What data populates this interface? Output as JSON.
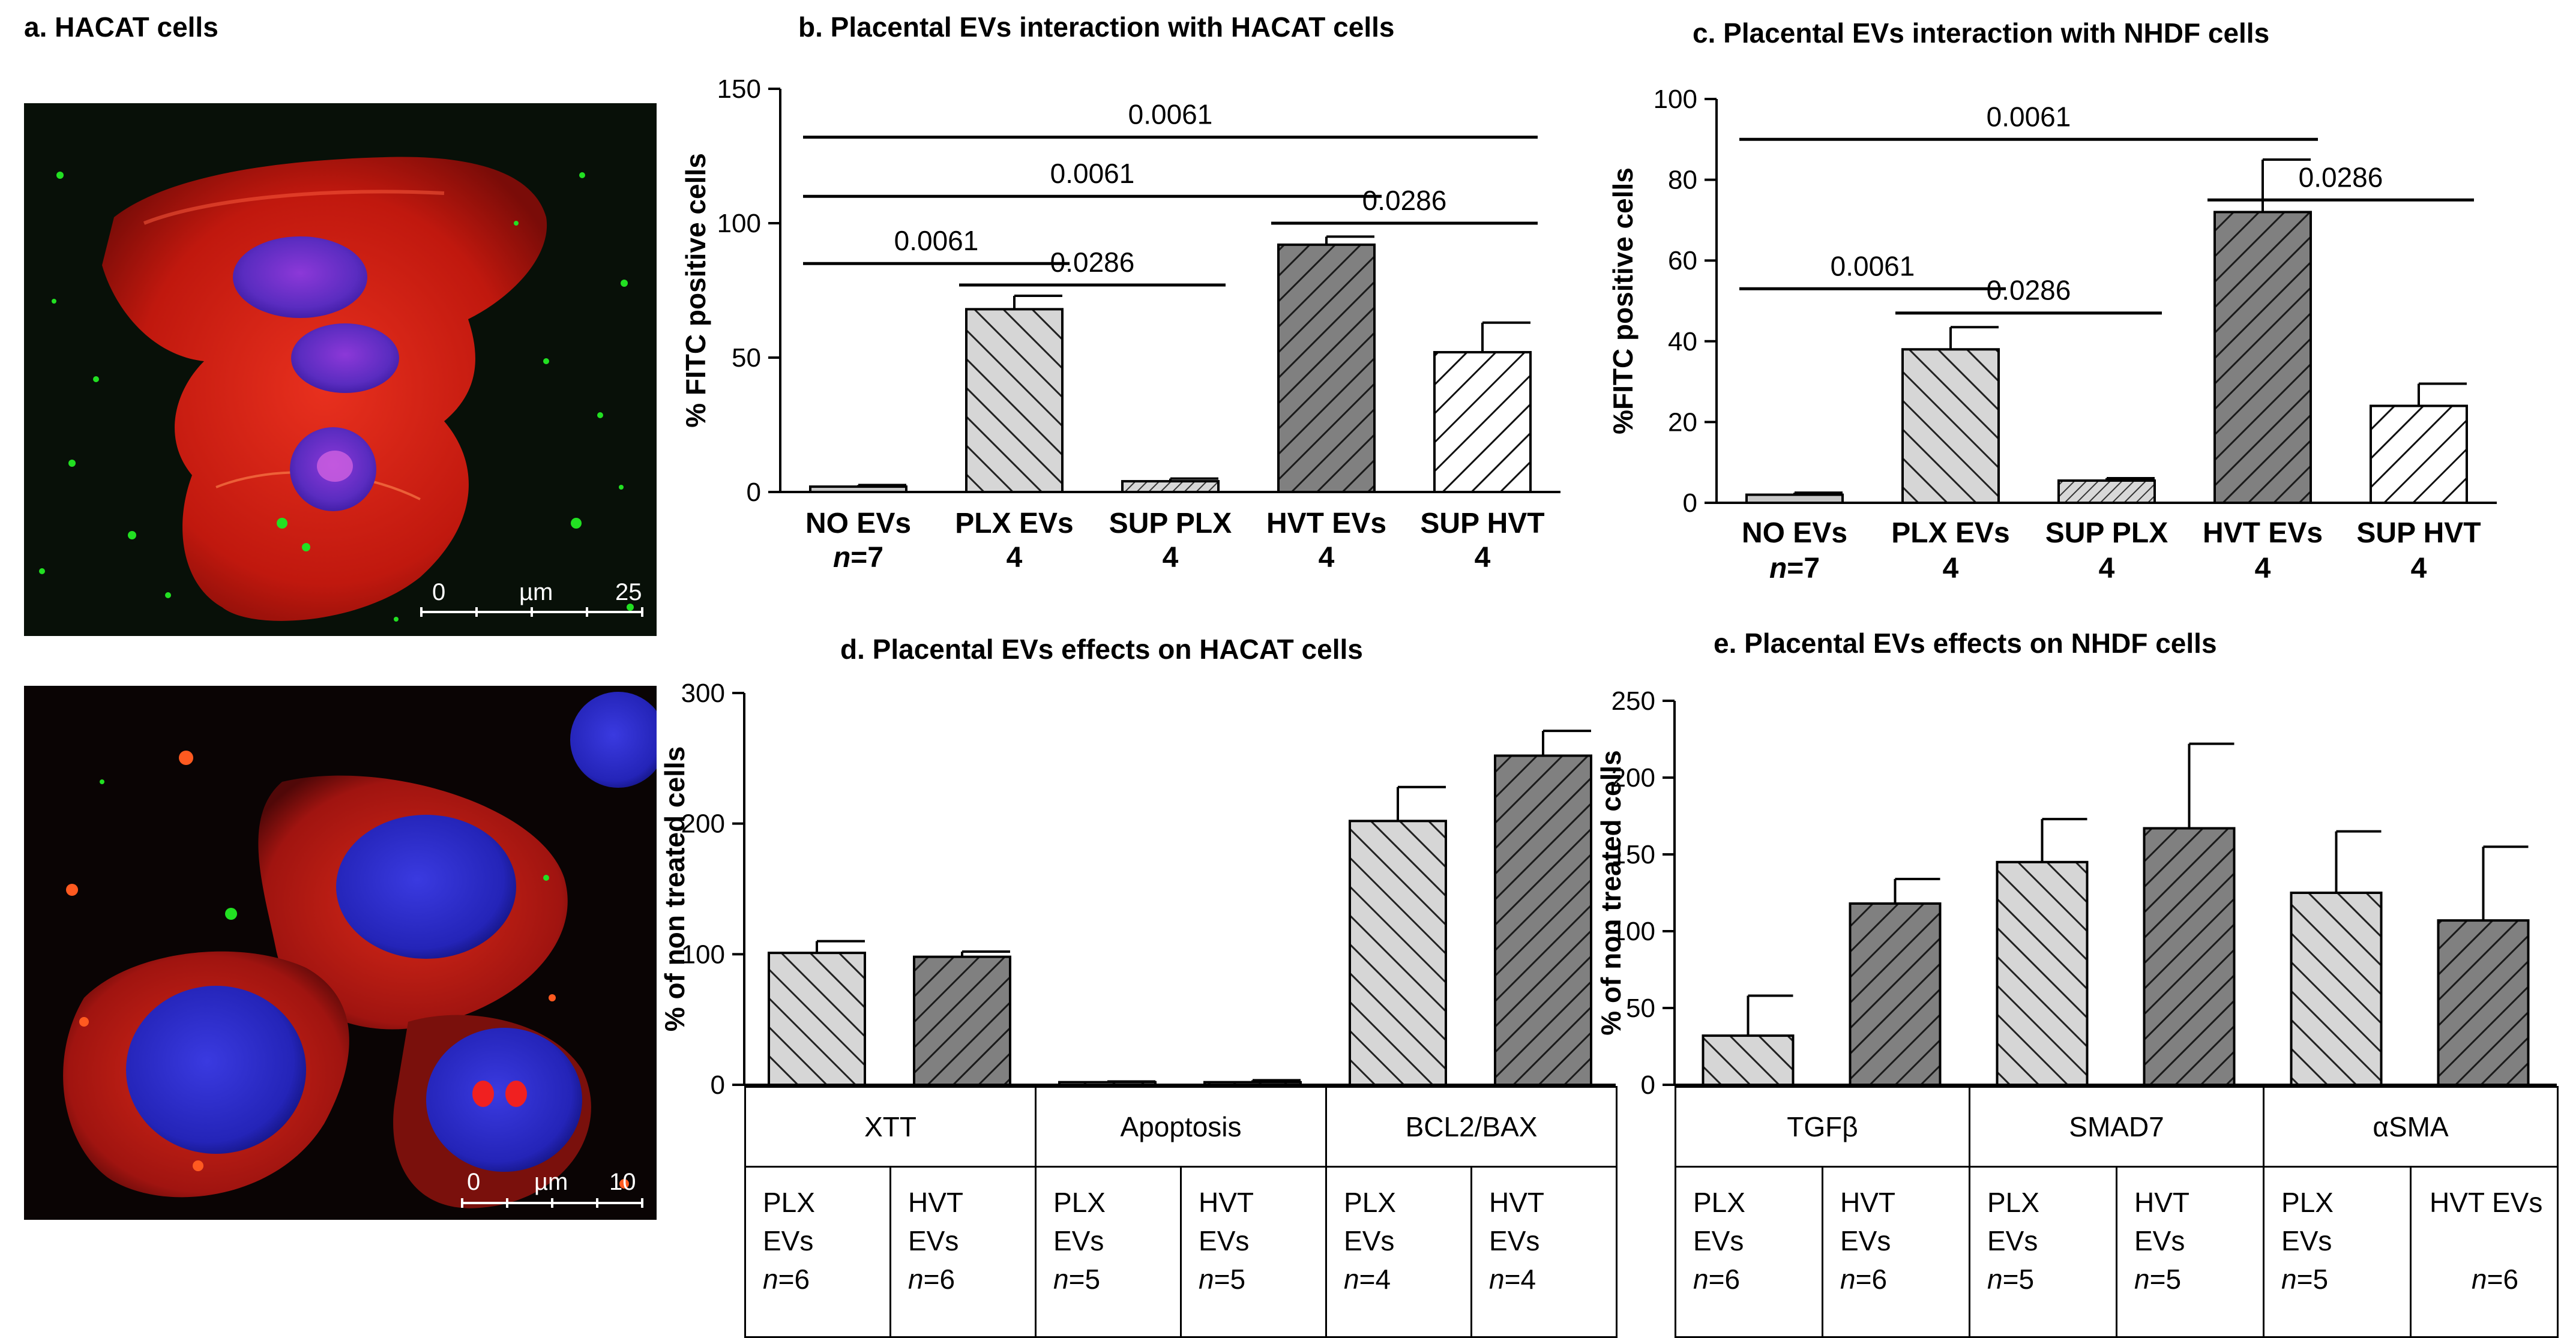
{
  "panel_a": {
    "title": "a. HACAT cells",
    "image1": {
      "scalebar": {
        "start": "0",
        "unit": "µm",
        "end": "25"
      }
    },
    "image2": {
      "scalebar": {
        "start": "0",
        "unit": "µm",
        "end": "10"
      }
    }
  },
  "tables": {
    "d": {
      "headers": [
        "XTT",
        "Apoptosis",
        "BCL2/BAX"
      ],
      "cells": [
        {
          "l1": "PLX",
          "l2": "EVs",
          "n": "6"
        },
        {
          "l1": "HVT",
          "l2": "EVs",
          "n": "6"
        },
        {
          "l1": "PLX",
          "l2": "EVs",
          "n": "5"
        },
        {
          "l1": "HVT",
          "l2": "EVs",
          "n": "5"
        },
        {
          "l1": "PLX",
          "l2": "EVs",
          "n": "4"
        },
        {
          "l1": "HVT",
          "l2": "EVs",
          "n": "4"
        }
      ]
    },
    "e": {
      "headers": [
        "TGFβ",
        "SMAD7",
        "αSMA"
      ],
      "cells": [
        {
          "l1": "PLX",
          "l2": "EVs",
          "n": "6"
        },
        {
          "l1": "HVT",
          "l2": "EVs",
          "n": "6"
        },
        {
          "l1": "PLX",
          "l2": "EVs",
          "n": "5"
        },
        {
          "l1": "HVT",
          "l2": "EVs",
          "n": "5"
        },
        {
          "l1": "PLX",
          "l2": "EVs",
          "n": "5"
        },
        {
          "l1": "HVT EVs",
          "l2": "",
          "n": "6"
        }
      ]
    }
  },
  "chart_data": [
    {
      "id": "b",
      "type": "bar",
      "title": "b.  Placental EVs interaction with HACAT cells",
      "ylabel": "% FITC positive cells",
      "ylim": [
        0,
        150
      ],
      "yticks": [
        0,
        50,
        100,
        150
      ],
      "categories": [
        "NO EVs",
        "PLX EVs",
        "SUP PLX",
        "HVT EVs",
        "SUP HVT"
      ],
      "sample_sizes": [
        "n=7",
        "4",
        "4",
        "4",
        "4"
      ],
      "values": [
        2,
        68,
        4,
        92,
        52
      ],
      "errors": [
        0.6,
        5,
        1,
        3,
        11
      ],
      "patterns": [
        "plain",
        "light-diag",
        "dense-light",
        "dark-diag",
        "white-diag"
      ],
      "significance": [
        {
          "from": 0,
          "to": 4,
          "y": 132,
          "label": "0.0061"
        },
        {
          "from": 0,
          "to": 3,
          "y": 110,
          "label": "0.0061"
        },
        {
          "from": 0,
          "to": 1,
          "y": 85,
          "label": "0.0061"
        },
        {
          "from": 1,
          "to": 2,
          "y": 77,
          "label": "0.0286"
        },
        {
          "from": 3,
          "to": 4,
          "y": 100,
          "label": "0.0286"
        }
      ]
    },
    {
      "id": "c",
      "type": "bar",
      "title": "c.  Placental EVs interaction with NHDF cells",
      "ylabel": "%FITC positive cells",
      "ylim": [
        0,
        100
      ],
      "yticks": [
        0,
        20,
        40,
        60,
        80,
        100
      ],
      "categories": [
        "NO EVs",
        "PLX EVs",
        "SUP PLX",
        "HVT EVs",
        "SUP HVT"
      ],
      "sample_sizes": [
        "n=7",
        "4",
        "4",
        "4",
        "4"
      ],
      "values": [
        2,
        38,
        5.5,
        72,
        24
      ],
      "errors": [
        0.5,
        5.5,
        0.6,
        13,
        5.5
      ],
      "patterns": [
        "plain",
        "light-diag",
        "dense-light",
        "dark-diag",
        "white-diag"
      ],
      "significance": [
        {
          "from": 0,
          "to": 3,
          "y": 90,
          "label": "0.0061"
        },
        {
          "from": 0,
          "to": 1,
          "y": 53,
          "label": "0.0061"
        },
        {
          "from": 1,
          "to": 2,
          "y": 47,
          "label": "0.0286"
        },
        {
          "from": 3,
          "to": 4,
          "y": 75,
          "label": "0.0286"
        }
      ]
    },
    {
      "id": "d",
      "type": "bar",
      "title": "d.  Placental EVs effects on HACAT cells",
      "ylabel": "% of non treated cells",
      "ylim": [
        0,
        300
      ],
      "yticks": [
        0,
        100,
        200,
        300
      ],
      "categories": [
        "XTT PLX EVs",
        "XTT HVT EVs",
        "Apoptosis PLX EVs",
        "Apoptosis HVT EVs",
        "BCL2/BAX PLX EVs",
        "BCL2/BAX HVT EVs"
      ],
      "values": [
        101,
        98,
        2,
        2,
        202,
        252
      ],
      "errors": [
        9,
        4,
        0.5,
        1.5,
        26,
        19
      ],
      "patterns": [
        "light-diag",
        "dark-diag",
        "light-diag",
        "dark-diag",
        "light-diag",
        "dark-diag"
      ]
    },
    {
      "id": "e",
      "type": "bar",
      "title": "e.  Placental EVs effects on NHDF cells",
      "ylabel": "% of non treated cells",
      "ylim": [
        0,
        250
      ],
      "yticks": [
        0,
        50,
        100,
        150,
        200,
        250
      ],
      "categories": [
        "TGFβ PLX EVs",
        "TGFβ HVT EVs",
        "SMAD7 PLX EVs",
        "SMAD7 HVT EVs",
        "αSMA PLX EVs",
        "αSMA HVT EVs"
      ],
      "values": [
        32,
        118,
        145,
        167,
        125,
        107
      ],
      "errors": [
        26,
        16,
        28,
        55,
        40,
        48
      ],
      "patterns": [
        "light-diag",
        "dark-diag",
        "light-diag",
        "dark-diag",
        "light-diag",
        "dark-diag"
      ]
    }
  ]
}
